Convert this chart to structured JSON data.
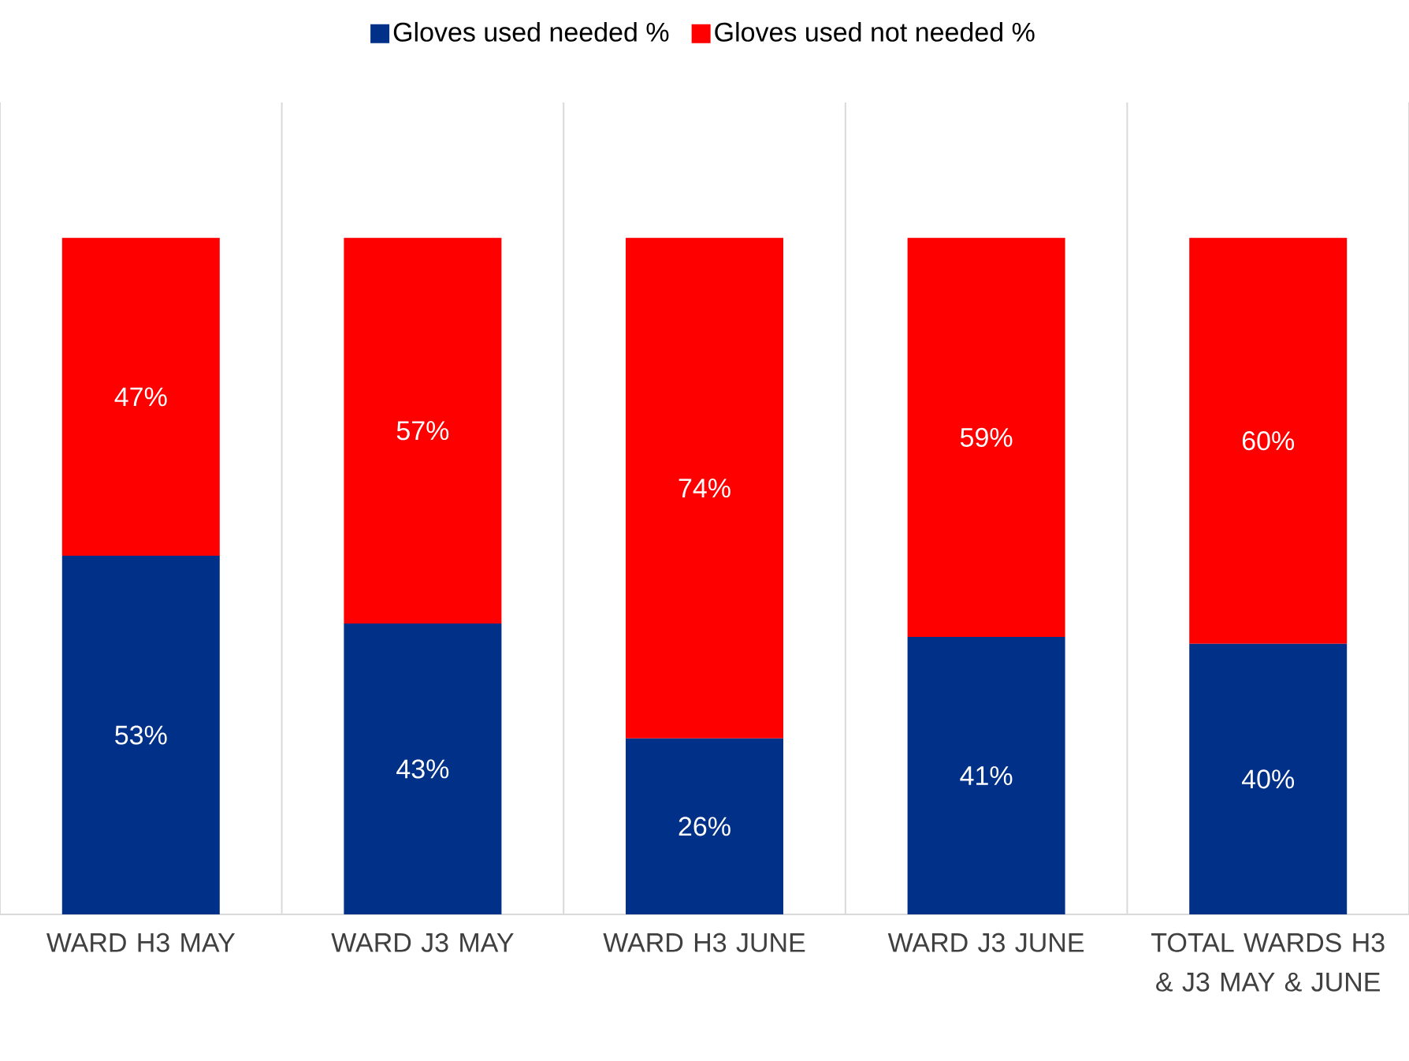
{
  "chart_data": {
    "type": "bar",
    "stacked": true,
    "legend": "top",
    "grid": "x",
    "tick_labels": "x",
    "categories": [
      "WARD H3 MAY",
      "WARD J3 MAY",
      "WARD H3 JUNE",
      "WARD J3 JUNE",
      "TOTAL WARDS H3 & J3 MAY & JUNE"
    ],
    "series": [
      {
        "name": "Gloves used needed %",
        "color": "#003087",
        "values": [
          53,
          43,
          26,
          41,
          40
        ],
        "value_labels": [
          "53%",
          "43%",
          "26%",
          "41%",
          "40%"
        ]
      },
      {
        "name": "Gloves used not needed %",
        "color": "#ff0000",
        "values": [
          47,
          57,
          74,
          59,
          60
        ],
        "value_labels": [
          "47%",
          "57%",
          "74%",
          "59%",
          "60%"
        ]
      }
    ]
  }
}
